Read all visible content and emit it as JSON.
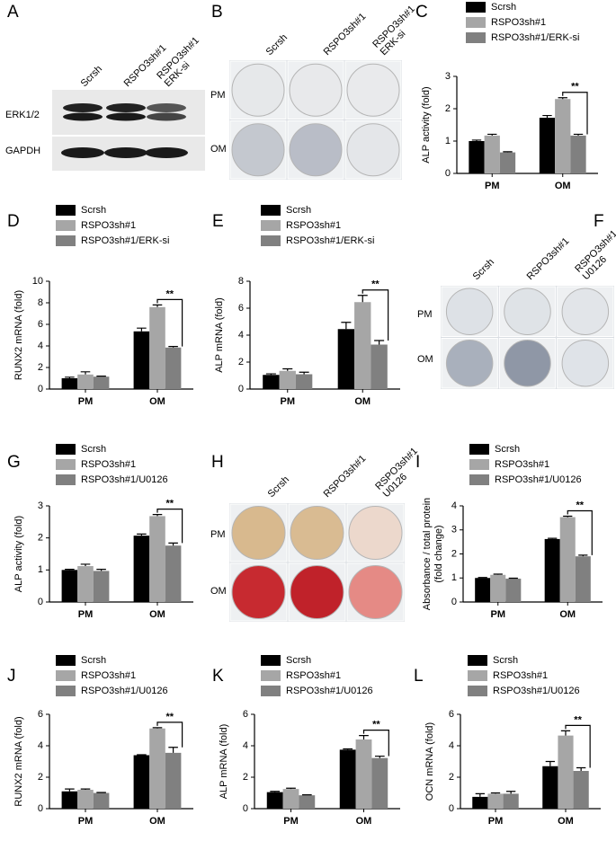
{
  "images": [
    {
      "letter": "A",
      "columns": [
        [
          "Scrsh"
        ],
        [
          "RSPO3sh#1"
        ],
        [
          "RSPO3sh#1",
          "ERK-si"
        ]
      ],
      "rows": [
        "ERK1/2",
        "GAPDH"
      ]
    },
    {
      "letter": "B",
      "columns": [
        [
          "Scrsh"
        ],
        [
          "RSPO3sh#1"
        ],
        [
          "RSPO3sh#1",
          "ERK-si"
        ]
      ],
      "rows": [
        "PM",
        "OM"
      ]
    },
    {
      "letter": "F",
      "columns": [
        [
          "Scrsh"
        ],
        [
          "RSPO3sh#1"
        ],
        [
          "RSPO3sh#1",
          "U0126"
        ]
      ],
      "rows": [
        "PM",
        "OM"
      ]
    },
    {
      "letter": "H",
      "columns": [
        [
          "Scrsh"
        ],
        [
          "RSPO3sh#1"
        ],
        [
          "RSPO3sh#1",
          "U0126"
        ]
      ],
      "rows": [
        "PM",
        "OM"
      ]
    }
  ],
  "chart_data": [
    {
      "type": "bar",
      "letter": "C",
      "ylabel": [
        "ALP activity (fold)"
      ],
      "categories": [
        "PM",
        "OM"
      ],
      "ylim": [
        0,
        3
      ],
      "yticks": [
        0,
        1,
        2,
        3
      ],
      "annotation": "**",
      "series": [
        {
          "name": "Scrsh",
          "color": "#000000",
          "values": [
            1.0,
            1.72
          ],
          "errors": [
            0.03,
            0.07
          ]
        },
        {
          "name": "RSPO3sh#1",
          "color": "#a6a6a6",
          "values": [
            1.17,
            2.3
          ],
          "errors": [
            0.04,
            0.04
          ]
        },
        {
          "name": "RSPO3sh#1/ERK-si",
          "color": "#808080",
          "values": [
            0.65,
            1.17
          ],
          "errors": [
            0.02,
            0.04
          ]
        }
      ]
    },
    {
      "type": "bar",
      "letter": "D",
      "ylabel": [
        "RUNX2 mRNA (fold)"
      ],
      "categories": [
        "PM",
        "OM"
      ],
      "ylim": [
        0,
        10
      ],
      "yticks": [
        0,
        2,
        4,
        6,
        8,
        10
      ],
      "annotation": "**",
      "series": [
        {
          "name": "Scrsh",
          "color": "#000000",
          "values": [
            1.0,
            5.35
          ],
          "errors": [
            0.1,
            0.3
          ]
        },
        {
          "name": "RSPO3sh#1",
          "color": "#a6a6a6",
          "values": [
            1.35,
            7.6
          ],
          "errors": [
            0.25,
            0.2
          ]
        },
        {
          "name": "RSPO3sh#1/ERK-si",
          "color": "#808080",
          "values": [
            1.15,
            3.85
          ],
          "errors": [
            0.05,
            0.1
          ]
        }
      ]
    },
    {
      "type": "bar",
      "letter": "E",
      "ylabel": [
        "ALP mRNA (fold)"
      ],
      "categories": [
        "PM",
        "OM"
      ],
      "ylim": [
        0,
        8
      ],
      "yticks": [
        0,
        2,
        4,
        6,
        8
      ],
      "annotation": "**",
      "series": [
        {
          "name": "Scrsh",
          "color": "#000000",
          "values": [
            1.05,
            4.45
          ],
          "errors": [
            0.08,
            0.5
          ]
        },
        {
          "name": "RSPO3sh#1",
          "color": "#a6a6a6",
          "values": [
            1.35,
            6.45
          ],
          "errors": [
            0.15,
            0.5
          ]
        },
        {
          "name": "RSPO3sh#1/ERK-si",
          "color": "#808080",
          "values": [
            1.1,
            3.3
          ],
          "errors": [
            0.15,
            0.3
          ]
        }
      ]
    },
    {
      "type": "bar",
      "letter": "G",
      "ylabel": [
        "ALP activity (fold)"
      ],
      "categories": [
        "PM",
        "OM"
      ],
      "ylim": [
        0,
        3
      ],
      "yticks": [
        0,
        1,
        2,
        3
      ],
      "annotation": "**",
      "series": [
        {
          "name": "Scrsh",
          "color": "#000000",
          "values": [
            1.0,
            2.07
          ],
          "errors": [
            0.02,
            0.05
          ]
        },
        {
          "name": "RSPO3sh#1",
          "color": "#a6a6a6",
          "values": [
            1.12,
            2.68
          ],
          "errors": [
            0.06,
            0.05
          ]
        },
        {
          "name": "RSPO3sh#1/U0126",
          "color": "#808080",
          "values": [
            0.97,
            1.76
          ],
          "errors": [
            0.05,
            0.08
          ]
        }
      ]
    },
    {
      "type": "bar",
      "letter": "I",
      "ylabel": [
        "Absorbance / total protein",
        "(fold change)"
      ],
      "categories": [
        "PM",
        "OM"
      ],
      "ylim": [
        0,
        4
      ],
      "yticks": [
        0,
        1,
        2,
        3,
        4
      ],
      "annotation": "**",
      "series": [
        {
          "name": "Scrsh",
          "color": "#000000",
          "values": [
            1.0,
            2.62
          ],
          "errors": [
            0.02,
            0.03
          ]
        },
        {
          "name": "RSPO3sh#1",
          "color": "#a6a6a6",
          "values": [
            1.13,
            3.53
          ],
          "errors": [
            0.03,
            0.04
          ]
        },
        {
          "name": "RSPO3sh#1/U0126",
          "color": "#808080",
          "values": [
            0.97,
            1.9
          ],
          "errors": [
            0.02,
            0.05
          ]
        }
      ]
    },
    {
      "type": "bar",
      "letter": "J",
      "ylabel": [
        "RUNX2 mRNA (fold)"
      ],
      "categories": [
        "PM",
        "OM"
      ],
      "ylim": [
        0,
        6
      ],
      "yticks": [
        0,
        2,
        4,
        6
      ],
      "annotation": "**",
      "series": [
        {
          "name": "Scrsh",
          "color": "#000000",
          "values": [
            1.1,
            3.4
          ],
          "errors": [
            0.15,
            0.03
          ]
        },
        {
          "name": "RSPO3sh#1",
          "color": "#a6a6a6",
          "values": [
            1.2,
            5.1
          ],
          "errors": [
            0.05,
            0.05
          ]
        },
        {
          "name": "RSPO3sh#1/U0126",
          "color": "#808080",
          "values": [
            1.0,
            3.55
          ],
          "errors": [
            0.03,
            0.35
          ]
        }
      ]
    },
    {
      "type": "bar",
      "letter": "K",
      "ylabel": [
        "ALP mRNA (fold)"
      ],
      "categories": [
        "PM",
        "OM"
      ],
      "ylim": [
        0,
        6
      ],
      "yticks": [
        0,
        2,
        4,
        6
      ],
      "annotation": "**",
      "series": [
        {
          "name": "Scrsh",
          "color": "#000000",
          "values": [
            1.05,
            3.75
          ],
          "errors": [
            0.05,
            0.05
          ]
        },
        {
          "name": "RSPO3sh#1",
          "color": "#a6a6a6",
          "values": [
            1.25,
            4.4
          ],
          "errors": [
            0.05,
            0.25
          ]
        },
        {
          "name": "RSPO3sh#1/U0126",
          "color": "#808080",
          "values": [
            0.85,
            3.22
          ],
          "errors": [
            0.03,
            0.12
          ]
        }
      ]
    },
    {
      "type": "bar",
      "letter": "L",
      "ylabel": [
        "OCN mRNA (fold)"
      ],
      "categories": [
        "PM",
        "OM"
      ],
      "ylim": [
        0,
        6
      ],
      "yticks": [
        0,
        2,
        4,
        6
      ],
      "annotation": "**",
      "series": [
        {
          "name": "Scrsh",
          "color": "#000000",
          "values": [
            0.75,
            2.7
          ],
          "errors": [
            0.2,
            0.3
          ]
        },
        {
          "name": "RSPO3sh#1",
          "color": "#a6a6a6",
          "values": [
            0.95,
            4.65
          ],
          "errors": [
            0.05,
            0.3
          ]
        },
        {
          "name": "RSPO3sh#1/U0126",
          "color": "#808080",
          "values": [
            0.95,
            2.4
          ],
          "errors": [
            0.15,
            0.2
          ]
        }
      ]
    }
  ]
}
